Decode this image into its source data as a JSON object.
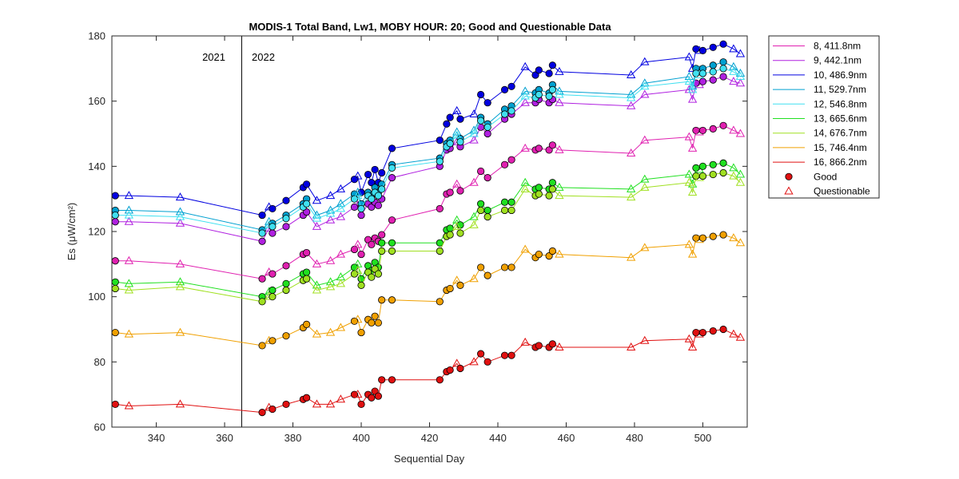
{
  "chart_data": {
    "type": "line",
    "title": "MODIS-1 Total Band,  Lw1, MOBY HOUR: 20;  Good and Questionable Data",
    "xlabel": "Sequential Day",
    "ylabel": "Es (μW/cm²)",
    "xlim": [
      327,
      513
    ],
    "ylim": [
      60,
      180
    ],
    "xticks": [
      340,
      360,
      380,
      400,
      420,
      440,
      460,
      480,
      500
    ],
    "yticks": [
      60,
      80,
      100,
      120,
      140,
      160,
      180
    ],
    "grid": false,
    "legend_placement": "outside-right",
    "year_divider": {
      "x": 365,
      "left_label": "2021",
      "right_label": "2022"
    },
    "x": [
      328,
      332,
      347,
      371,
      373,
      374,
      378,
      383,
      384,
      387,
      391,
      394,
      398,
      399,
      400,
      402,
      403,
      404,
      405,
      406,
      409,
      423,
      425,
      426,
      428,
      429,
      433,
      435,
      437,
      442,
      444,
      448,
      451,
      452,
      455,
      456,
      458,
      479,
      483,
      496,
      497,
      498,
      499,
      500,
      503,
      506,
      509,
      511
    ],
    "quality": [
      "G",
      "Q",
      "Q",
      "G",
      "Q",
      "G",
      "G",
      "G",
      "G",
      "Q",
      "Q",
      "Q",
      "G",
      "Q",
      "G",
      "G",
      "G",
      "G",
      "G",
      "G",
      "G",
      "G",
      "G",
      "G",
      "Q",
      "G",
      "Q",
      "G",
      "G",
      "G",
      "G",
      "Q",
      "G",
      "G",
      "G",
      "G",
      "Q",
      "Q",
      "Q",
      "Q",
      "Q",
      "G",
      "Q",
      "G",
      "G",
      "G",
      "Q",
      "Q"
    ],
    "marker_legend": [
      {
        "label": "Good",
        "marker": "circle"
      },
      {
        "label": "Questionable",
        "marker": "triangle"
      }
    ],
    "series": [
      {
        "name": "8, 411.8nm",
        "color": "#e020b0",
        "values": [
          111,
          111,
          110,
          105.5,
          107.5,
          107,
          109.5,
          113,
          113.5,
          110,
          111,
          113,
          114.5,
          116,
          113,
          117.5,
          116,
          118,
          117,
          119,
          123.5,
          127,
          131.5,
          132,
          134.5,
          132.5,
          135,
          138.5,
          136.5,
          140.5,
          142,
          145.5,
          145,
          145.5,
          145,
          146.5,
          145,
          144,
          148,
          149,
          145.5,
          151,
          150.5,
          151,
          151.5,
          152.5,
          151,
          150
        ]
      },
      {
        "name": "9, 442.1nm",
        "color": "#b020e0",
        "values": [
          123,
          123,
          122.5,
          117,
          121,
          119.5,
          121.5,
          125,
          126,
          121.5,
          123.5,
          124.5,
          127.5,
          128,
          125,
          128.5,
          127.5,
          129,
          128,
          130,
          136.5,
          140,
          145,
          145.5,
          147.5,
          146,
          148,
          152,
          150,
          154.5,
          156,
          159.5,
          159.5,
          160.5,
          159.5,
          160.5,
          159.5,
          158.5,
          162,
          163.5,
          160.5,
          165.5,
          165,
          166,
          166.5,
          167.5,
          166,
          165.5
        ]
      },
      {
        "name": "10, 486.9nm",
        "color": "#0000e0",
        "values": [
          131,
          131,
          130.5,
          125,
          127.5,
          127,
          129.5,
          133.5,
          134.5,
          129.5,
          131,
          133,
          136,
          137,
          132,
          137.5,
          135,
          139,
          135,
          138,
          145.5,
          148,
          153,
          155,
          157,
          154.5,
          156,
          162,
          159.5,
          163.5,
          164.5,
          170.5,
          168,
          169.5,
          168.5,
          171,
          169,
          168,
          172,
          173.5,
          170,
          176,
          175.5,
          175.5,
          176.5,
          177.5,
          176,
          174.5
        ]
      },
      {
        "name": "11, 529.7nm",
        "color": "#00a0d0",
        "values": [
          126.5,
          126.5,
          126,
          120.5,
          123,
          122.5,
          125,
          128.5,
          130,
          125,
          126.5,
          128.5,
          131.5,
          132,
          128.5,
          132,
          131,
          133.5,
          132,
          134.5,
          140.5,
          142.5,
          147,
          148,
          150.5,
          148.5,
          151,
          155,
          153,
          157.5,
          158.5,
          163,
          162.5,
          163.5,
          162.5,
          165,
          163,
          162,
          165.5,
          167.5,
          164.5,
          170,
          169.5,
          170,
          171,
          172,
          170.5,
          168.5
        ]
      },
      {
        "name": "12, 546.8nm",
        "color": "#40e0f0",
        "values": [
          125,
          125,
          124.5,
          119.5,
          122,
          121.5,
          124,
          127.5,
          128.5,
          124,
          125.5,
          127,
          130,
          131,
          127,
          131,
          130,
          132,
          131,
          133,
          139.5,
          141.5,
          146,
          147,
          149.5,
          147.5,
          150,
          154,
          152,
          156,
          157,
          161.5,
          161,
          162,
          161.5,
          163.5,
          162,
          161,
          164.5,
          166,
          163.5,
          168.5,
          168,
          168.5,
          169,
          170,
          169,
          167.5
        ]
      },
      {
        "name": "13, 665.6nm",
        "color": "#20e020",
        "values": [
          104.5,
          104,
          104.5,
          100,
          101.5,
          102,
          104,
          107,
          107.5,
          103.5,
          104.5,
          106,
          109,
          110,
          105.5,
          109.5,
          108,
          110.5,
          109,
          116.5,
          116.5,
          116.5,
          120.5,
          121,
          123.5,
          122,
          124.5,
          128.5,
          126.5,
          129,
          129,
          135,
          133,
          133.5,
          133,
          135,
          133.5,
          133,
          136,
          137.5,
          134.5,
          139.5,
          139,
          140,
          140.5,
          141,
          139.5,
          137.5
        ]
      },
      {
        "name": "14, 676.7nm",
        "color": "#a0e020",
        "values": [
          102.5,
          102,
          103,
          98.5,
          100,
          100,
          102,
          105,
          105.5,
          102,
          103,
          104,
          107,
          108,
          103.5,
          107.5,
          106,
          108.5,
          107,
          114,
          114,
          114,
          118.5,
          119,
          121.5,
          119.5,
          122,
          126.5,
          124.5,
          126.5,
          126.5,
          133,
          131,
          131.5,
          131,
          133,
          131,
          130.5,
          133.5,
          135,
          132,
          137,
          136.5,
          137,
          137.5,
          138,
          137,
          135
        ]
      },
      {
        "name": "15, 746.4nm",
        "color": "#f0a000",
        "values": [
          89,
          88.5,
          89,
          85,
          86.5,
          86.5,
          88,
          90.5,
          91.5,
          88.5,
          89,
          90.5,
          92.5,
          93,
          89,
          93,
          92,
          94,
          92,
          99,
          99,
          98.5,
          102,
          102.5,
          105,
          103.5,
          105.5,
          109,
          106.5,
          109,
          109,
          114.5,
          112,
          113,
          112.5,
          114,
          113,
          112,
          115,
          116,
          113,
          118,
          117.5,
          118,
          118.5,
          119,
          118,
          116.5
        ]
      },
      {
        "name": "16, 866.2nm",
        "color": "#e01010",
        "values": [
          67,
          66.5,
          67,
          64.5,
          66,
          65.5,
          67,
          68.5,
          69,
          67,
          67,
          68.5,
          70,
          70,
          67,
          70,
          69,
          71,
          69.5,
          74.5,
          74.5,
          74.5,
          77,
          77.5,
          79.5,
          78,
          80,
          82.5,
          80,
          82,
          82,
          86,
          84.5,
          85,
          84.5,
          85.5,
          84.5,
          84.5,
          86.5,
          87,
          84.5,
          89,
          88.5,
          89,
          89.5,
          90,
          88.5,
          87.5
        ]
      }
    ]
  }
}
